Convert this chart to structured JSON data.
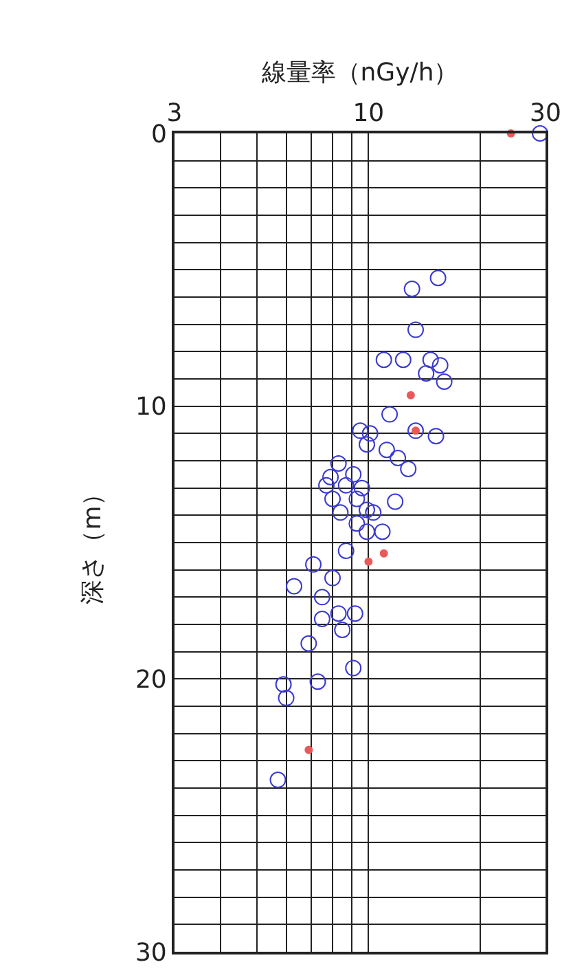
{
  "chart_data": {
    "type": "scatter",
    "xlabel": "線量率（nGy/h）",
    "ylabel": "深さ（m）",
    "log": "x",
    "xlim": [
      3,
      30
    ],
    "xticks": [
      3,
      {
        "value": 4,
        "label": null
      },
      {
        "value": 5,
        "label": null
      },
      {
        "value": 6,
        "label": null
      },
      {
        "value": 7,
        "label": null
      },
      {
        "value": 8,
        "label": null
      },
      {
        "value": 9,
        "label": null
      },
      10,
      {
        "value": 20,
        "label": null
      },
      30
    ],
    "ylim": [
      30,
      0
    ],
    "yticks": [
      0,
      {
        "value": 1,
        "label": null
      },
      {
        "value": 2,
        "label": null
      },
      {
        "value": 3,
        "label": null
      },
      {
        "value": 4,
        "label": null
      },
      {
        "value": 5,
        "label": null
      },
      {
        "value": 6,
        "label": null
      },
      {
        "value": 7,
        "label": null
      },
      {
        "value": 8,
        "label": null
      },
      {
        "value": 9,
        "label": null
      },
      10,
      {
        "value": 11,
        "label": null
      },
      {
        "value": 12,
        "label": null
      },
      {
        "value": 13,
        "label": null
      },
      {
        "value": 14,
        "label": null
      },
      {
        "value": 15,
        "label": null
      },
      {
        "value": 16,
        "label": null
      },
      {
        "value": 17,
        "label": null
      },
      {
        "value": 18,
        "label": null
      },
      {
        "value": 19,
        "label": null
      },
      20,
      {
        "value": 21,
        "label": null
      },
      {
        "value": 22,
        "label": null
      },
      {
        "value": 23,
        "label": null
      },
      {
        "value": 24,
        "label": null
      },
      {
        "value": 25,
        "label": null
      },
      {
        "value": 26,
        "label": null
      },
      {
        "value": 27,
        "label": null
      },
      {
        "value": 28,
        "label": null
      },
      {
        "value": 29,
        "label": null
      },
      30
    ],
    "grid": true,
    "marker": "circle",
    "series": [
      {
        "color": "#3a3ad0",
        "x": [
          29,
          15.4,
          13.1,
          13.4,
          11.0,
          12.4,
          14.7,
          15.6,
          14.3,
          16.0,
          11.4,
          9.5,
          10.1,
          13.4,
          15.2,
          9.9,
          11.2,
          12.0,
          12.8,
          8.3,
          7.9,
          9.1,
          7.7,
          8.7,
          9.6,
          8.0,
          9.3,
          11.8,
          9.9,
          8.4,
          10.3,
          9.3,
          9.9,
          10.9,
          8.7,
          7.1,
          8.0,
          6.3,
          7.5,
          8.3,
          9.2,
          7.5,
          8.5,
          6.9,
          9.1,
          7.3,
          5.9,
          6.0,
          5.7
        ],
        "values": [
          0,
          5.3,
          5.7,
          7.2,
          8.3,
          8.3,
          8.3,
          8.5,
          8.8,
          9.1,
          10.3,
          10.9,
          11.0,
          10.9,
          11.1,
          11.4,
          11.6,
          11.9,
          12.3,
          12.1,
          12.6,
          12.5,
          12.9,
          12.9,
          13.0,
          13.4,
          13.4,
          13.5,
          13.8,
          13.9,
          13.9,
          14.3,
          14.6,
          14.6,
          15.3,
          15.8,
          16.3,
          16.6,
          17.0,
          17.6,
          17.6,
          17.8,
          18.2,
          18.7,
          19.6,
          20.1,
          20.2,
          20.7,
          23.7
        ]
      },
      {
        "color": "#e85a5a",
        "x": [
          24.2,
          13.0,
          13.4,
          11.0,
          10.0,
          6.9
        ],
        "values": [
          0,
          9.6,
          10.9,
          15.4,
          15.7,
          22.6
        ]
      }
    ]
  }
}
